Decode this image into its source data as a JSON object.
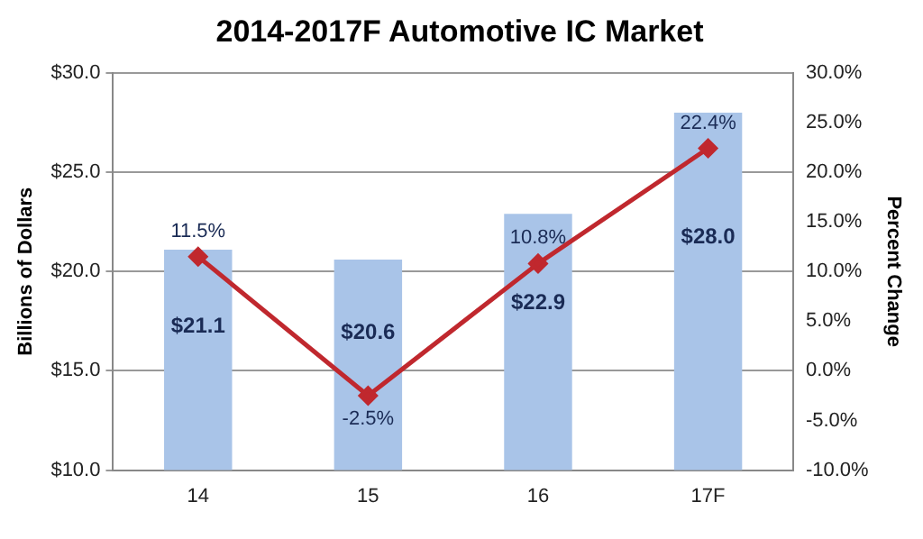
{
  "chart_data": {
    "type": "bar",
    "title": "2014-2017F Automotive IC Market",
    "ylabel": "Billions of Dollars",
    "y2label": "Percent Change",
    "categories": [
      "14",
      "15",
      "16",
      "17F"
    ],
    "series": [
      {
        "color": "#a9c4e8",
        "values": [
          21.1,
          20.6,
          22.9,
          28.0
        ],
        "value_labels": [
          "$21.1",
          "$20.6",
          "$22.9",
          "$28.0"
        ]
      },
      {
        "type": "line",
        "axis": "y2",
        "color": "#c0282e",
        "marker": "diamond",
        "values": [
          11.5,
          -2.5,
          10.8,
          22.4
        ],
        "value_labels": [
          "11.5%",
          "-2.5%",
          "10.8%",
          "22.4%"
        ]
      }
    ],
    "ylim": [
      10,
      30
    ],
    "yticks": [
      {
        "value": 10,
        "label": "$10.0"
      },
      {
        "value": 15,
        "label": "$15.0"
      },
      {
        "value": 20,
        "label": "$20.0"
      },
      {
        "value": 25,
        "label": "$25.0"
      },
      {
        "value": 30,
        "label": "$30.0"
      }
    ],
    "y2lim": [
      -10,
      30
    ],
    "y2ticks": [
      {
        "value": -10,
        "label": "-10.0%"
      },
      {
        "value": -5,
        "label": "-5.0%"
      },
      {
        "value": 0,
        "label": "0.0%"
      },
      {
        "value": 5,
        "label": "5.0%"
      },
      {
        "value": 10,
        "label": "10.0%"
      },
      {
        "value": 15,
        "label": "15.0%"
      },
      {
        "value": 20,
        "label": "20.0%"
      },
      {
        "value": 25,
        "label": "25.0%"
      },
      {
        "value": 30,
        "label": "30.0%"
      }
    ],
    "grid": "y",
    "legend": false
  }
}
